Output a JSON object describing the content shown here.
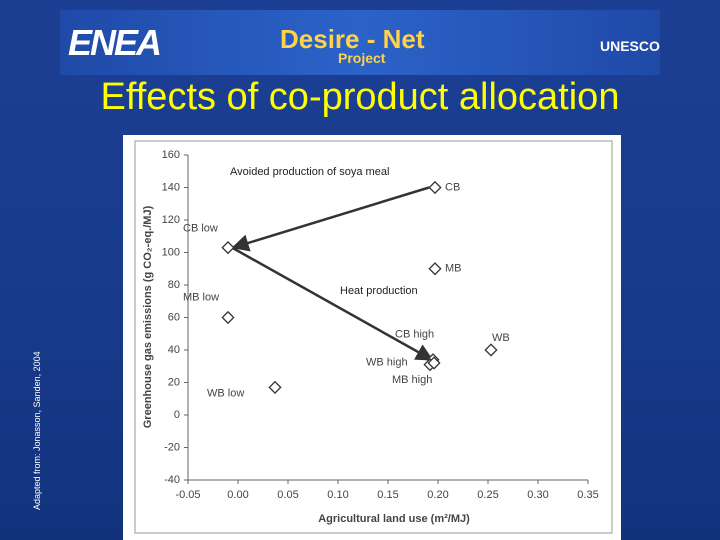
{
  "header": {
    "logo": "ENEA",
    "project": "Desire - Net",
    "subtitle": "Project",
    "partner": "UNESCO"
  },
  "title": "Effects of co-product allocation",
  "source": "Adapted from: Jonasson, Sanden, 2004",
  "chart_data": {
    "type": "scatter",
    "x_label": "Agricultural land use (m²/MJ)",
    "y_label": "Greenhouse gas emissions (g CO₂-eq./MJ)",
    "x": [
      0.197,
      -0.01,
      0.197,
      -0.01,
      0.253,
      0.195,
      0.192,
      0.196,
      0.037
    ],
    "values": [
      140,
      103,
      90,
      60,
      40,
      34,
      31,
      32,
      17
    ],
    "point_labels": [
      "CB",
      "CB low",
      "MB",
      "MB low",
      "WB",
      "CB high",
      "WB high",
      "MB high",
      "WB low"
    ],
    "color": "#ffffff",
    "annotations": [
      "Avoided production of soya meal",
      "Heat production"
    ],
    "xlim": [
      -0.05,
      0.35
    ],
    "xticks": [
      -0.05,
      {
        "value": 0,
        "label": "0.00"
      },
      0.05,
      {
        "value": 0.1,
        "label": "0.10"
      },
      0.15,
      {
        "value": 0.2,
        "label": "0.20"
      },
      0.25,
      {
        "value": 0.3,
        "label": "0.30"
      },
      0.35
    ],
    "ylim": [
      -40,
      160
    ],
    "yticks": [
      -40,
      -20,
      0,
      20,
      40,
      60,
      80,
      100,
      120,
      140,
      160
    ]
  }
}
